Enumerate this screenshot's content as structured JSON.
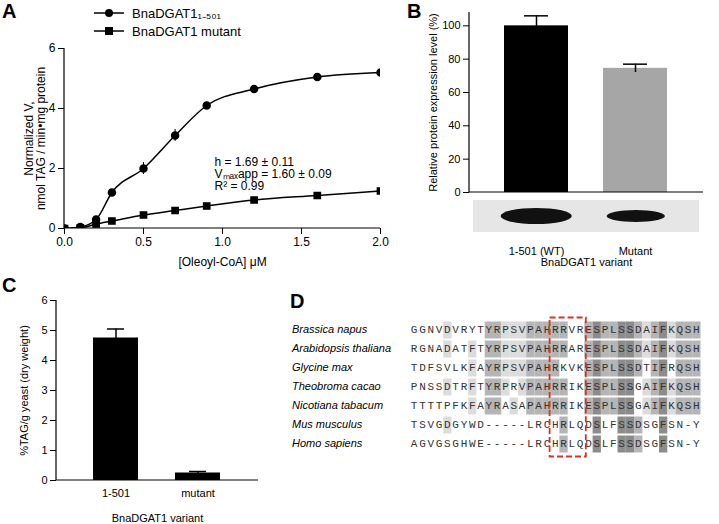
{
  "chart_data": [
    {
      "panel": "A",
      "type": "line",
      "xlabel": "[Oleoyl-CoA] μM",
      "ylabel": "Normalized V,\nnmol TAG / min•mg protein",
      "x": [
        0,
        0.1,
        0.2,
        0.3,
        0.5,
        0.7,
        0.9,
        1.2,
        1.6,
        2.0
      ],
      "series": [
        {
          "name": "BnaDGAT1₁₋₅₀₁",
          "color": "#000000",
          "marker": "circle",
          "line_style": "solid",
          "values": [
            0,
            0.05,
            0.3,
            1.2,
            2.0,
            3.1,
            4.1,
            4.65,
            5.05,
            5.2
          ],
          "errors": [
            null,
            null,
            null,
            null,
            0.2,
            0.2,
            null,
            null,
            null,
            null
          ]
        },
        {
          "name": "BnaDGAT1 mutant",
          "color": "#000000",
          "marker": "square",
          "line_style": "solid",
          "values": [
            0,
            0.02,
            0.15,
            0.25,
            0.45,
            0.6,
            0.75,
            0.95,
            1.1,
            1.25
          ]
        }
      ],
      "xlim": [
        0,
        2
      ],
      "xticks": [
        {
          "value": 0,
          "label": "0.0"
        },
        {
          "value": 0.5,
          "label": "0.5"
        },
        {
          "value": 1,
          "label": "1.0"
        },
        {
          "value": 1.5,
          "label": "1.5"
        },
        {
          "value": 2,
          "label": "2.0"
        }
      ],
      "ylim": [
        0,
        6
      ],
      "yticks": [
        0,
        2,
        4,
        6
      ],
      "annotations": [
        "h = 1.69 ± 0.11",
        "Vₘₐₓapp = 1.60 ± 0.09",
        "R² = 0.99"
      ],
      "legend": "top-left",
      "grid": false
    },
    {
      "panel": "B",
      "type": "bar",
      "categories": [
        "1-501 (WT)",
        "Mutant"
      ],
      "values": [
        100,
        74.5
      ],
      "errors": [
        6,
        2.5
      ],
      "colors": [
        "#000000",
        "#a6a6a6"
      ],
      "ylabel": "Relative protein expression level (%)",
      "xlabel": "BnaDGAT1 variant",
      "ylim": [
        0,
        108
      ],
      "yticks": [
        0,
        20,
        40,
        60,
        80,
        100
      ],
      "grid": false
    },
    {
      "panel": "C",
      "type": "bar",
      "categories": [
        "1-501",
        "mutant"
      ],
      "values": [
        4.75,
        0.25
      ],
      "errors": [
        0.3,
        0.05
      ],
      "color": "#000000",
      "ylabel": "%TAG/g yeast (dry weight)",
      "xlabel": "BnaDGAT1 variant",
      "ylim": [
        0,
        6
      ],
      "yticks": [
        0,
        1,
        2,
        3,
        4,
        5,
        6
      ],
      "grid": false
    }
  ],
  "alignment": {
    "panel": "D",
    "rows": [
      {
        "species": "Brassica napus",
        "sequence": "GGNVDVRYTYRPSVPAHRRVRESPLSSDAIFKQSH"
      },
      {
        "species": "Arabidopsis thaliana",
        "sequence": "RGNADATFTYRPSVPAHRRARESPLSSDAIFKQSH"
      },
      {
        "species": "Glycine max",
        "sequence": "TDFSVLKFAYRPSVPAHRKVKESPLSSDTIFRQSH"
      },
      {
        "species": "Theobroma cacao",
        "sequence": "PNSSDTRFTYRPRVPAHRRIKESPLSSGAIFKQSH"
      },
      {
        "species": "Nicotiana tabacum",
        "sequence": "TTTTPFKFAYRASAPAHRRIKESPLSSGAIFKQSH"
      },
      {
        "species": "Mus musculus",
        "sequence": "TSVGDGYWD-----LRCHRLQDSLFSSDSGFSN-Y"
      },
      {
        "species": "Homo sapiens",
        "sequence": "AGVGSGHWE-----LRCHRLQDSLFSSDSGFSN-Y"
      }
    ]
  }
}
